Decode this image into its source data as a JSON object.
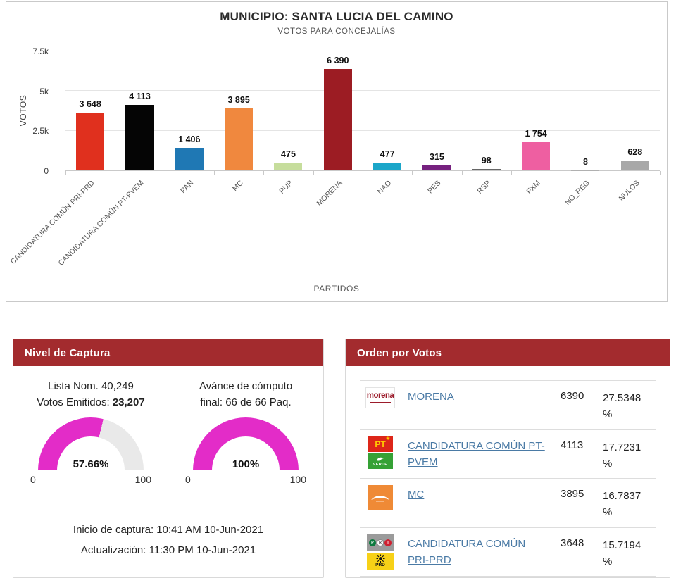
{
  "colors": {
    "accent_red": "#a32b2e",
    "gauge_fill": "#e32cc8",
    "gauge_track": "#e9e9e9",
    "link_blue": "#4a7aa5"
  },
  "chart_data": {
    "type": "bar",
    "title": "MUNICIPIO: SANTA LUCIA DEL CAMINO",
    "subtitle": "VOTOS PARA CONCEJALÍAS",
    "xlabel": "PARTIDOS",
    "ylabel": "VOTOS",
    "ylim": [
      0,
      7500
    ],
    "grid": true,
    "legend": "none",
    "yticks": [
      {
        "value": 0,
        "label": "0"
      },
      {
        "value": 2500,
        "label": "2.5k"
      },
      {
        "value": 5000,
        "label": "5k"
      },
      {
        "value": 7500,
        "label": "7.5k"
      }
    ],
    "categories": [
      "CANDIDATURA COMÚN PRI-PRD",
      "CANDIDATURA COMÚN PT-PVEM",
      "PAN",
      "MC",
      "PUP",
      "MORENA",
      "NAO",
      "PES",
      "RSP",
      "FXM",
      "NO_REG",
      "NULOS"
    ],
    "values": [
      3648,
      4113,
      1406,
      3895,
      475,
      6390,
      477,
      315,
      98,
      1754,
      8,
      628
    ],
    "value_labels": [
      "3 648",
      "4 113",
      "1 406",
      "3 895",
      "475",
      "6 390",
      "477",
      "315",
      "98",
      "1 754",
      "8",
      "628"
    ],
    "bar_colors": [
      "#e0301e",
      "#050505",
      "#1f78b4",
      "#f0883e",
      "#c6dd9c",
      "#9c1c23",
      "#1ba6c9",
      "#76217f",
      "#666666",
      "#ee5fa1",
      "#b0b0b0",
      "#a8a8a8"
    ]
  },
  "capture_panel": {
    "title": "Nivel de Captura",
    "left": {
      "line1": "Lista Nom. 40,249",
      "line2_label": "Votos Emitidos: ",
      "line2_value": "23,207",
      "percent": 57.66,
      "percent_label": "57.66%",
      "min": "0",
      "max": "100"
    },
    "right": {
      "line1": "Avánce de cómputo",
      "line2": "final: 66 de 66 Paq.",
      "percent": 100,
      "percent_label": "100%",
      "min": "0",
      "max": "100"
    },
    "footer_line1": "Inicio de captura: 10:41 AM 10-Jun-2021",
    "footer_line2": "Actualización: 11:30 PM 10-Jun-2021"
  },
  "order_panel": {
    "title": "Orden por Votos",
    "rows": [
      {
        "party": "MORENA",
        "votes": "6390",
        "percent": "27.5348 %"
      },
      {
        "party": "CANDIDATURA COMÚN PT-PVEM",
        "votes": "4113",
        "percent": "17.7231 %"
      },
      {
        "party": "MC",
        "votes": "3895",
        "percent": "16.7837 %"
      },
      {
        "party": "CANDIDATURA COMÚN PRI-PRD",
        "votes": "3648",
        "percent": "15.7194 %"
      }
    ],
    "logos": {
      "morena": "morena",
      "pt": "PT",
      "star": "★",
      "verde": "VERDE",
      "pri_letters": [
        "P",
        "R",
        "I"
      ],
      "prd": "PRD"
    }
  }
}
